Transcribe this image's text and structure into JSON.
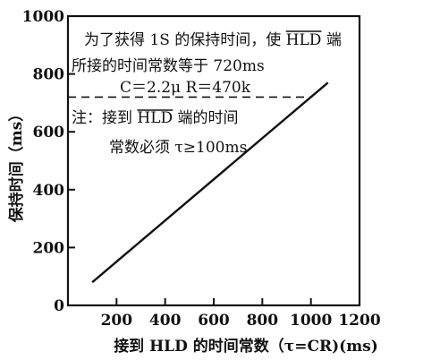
{
  "chart_data": {
    "type": "line",
    "xlabel": "接到 HLD 的时间常数（τ=CR)(ms)",
    "ylabel": "保持时间（ms）",
    "xlim": [
      0,
      1200
    ],
    "ylim": [
      0,
      1000
    ],
    "x_ticks": [
      200,
      400,
      600,
      800,
      1000,
      1200
    ],
    "x_tick_labels": [
      "200",
      "400",
      "600",
      "800",
      "1000",
      "1200"
    ],
    "y_ticks": [
      0,
      200,
      400,
      600,
      800,
      1000
    ],
    "y_tick_labels": [
      "0",
      "200",
      "400",
      "600",
      "800",
      "1000"
    ],
    "grid": false,
    "series": [
      {
        "x": [
          100,
          1070
        ],
        "y": [
          80,
          770
        ]
      }
    ],
    "reference_line": {
      "orientation": "horizontal",
      "y": 720,
      "x_from": 0,
      "x_to": 1000,
      "style": "dashed"
    },
    "annotations": [
      "为了获得 1S 的保持时间，使 HLD 端",
      "所接的时间常数等于 720ms",
      "C＝2.2μ  R＝470k",
      "注：接到 HLD 端的时间",
      "常数必须 τ≥100ms"
    ]
  }
}
